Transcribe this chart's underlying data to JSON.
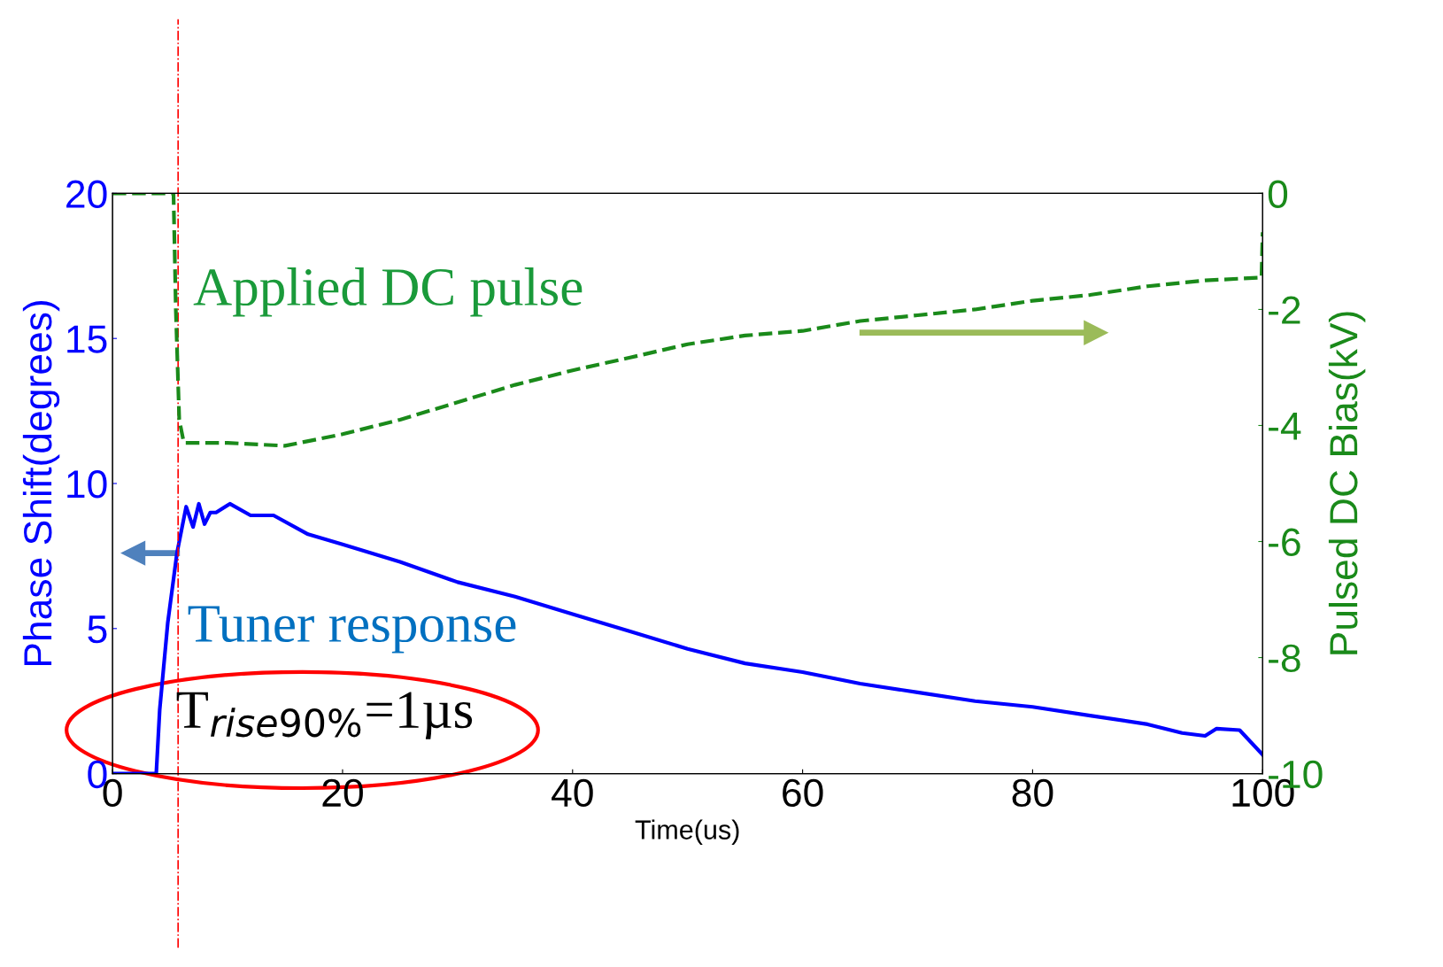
{
  "chart_data": {
    "type": "line",
    "xlabel": "Time(us)",
    "ylabel": "Phase Shift(degrees)",
    "y2label": "Pulsed DC Bias(kV)",
    "xlim": [
      0,
      100
    ],
    "xticks": [
      0,
      20,
      40,
      60,
      80,
      100
    ],
    "ylim": [
      0,
      20
    ],
    "yticks": [
      0,
      5,
      10,
      15,
      20
    ],
    "y2lim": [
      -10,
      0
    ],
    "y2ticks": [
      -10,
      -8,
      -6,
      -4,
      -2,
      0
    ],
    "grid": false,
    "legend": false,
    "series": [
      {
        "name": "Tuner response",
        "color": "#0000ff",
        "line_style": "solid",
        "x": [
          0,
          3.8,
          4.1,
          4.8,
          5.6,
          6.4,
          7.0,
          7.5,
          8.0,
          8.5,
          9.0,
          10.2,
          12,
          14,
          17,
          20,
          25,
          30,
          35,
          40,
          45,
          50,
          55,
          60,
          65,
          70,
          75,
          80,
          85,
          90,
          93,
          95,
          96,
          98,
          100
        ],
        "values": [
          0,
          0,
          2.2,
          5.2,
          7.6,
          9.2,
          8.5,
          9.3,
          8.6,
          9.0,
          9.0,
          9.3,
          8.9,
          8.9,
          8.25,
          7.9,
          7.3,
          6.6,
          6.1,
          5.5,
          4.9,
          4.3,
          3.8,
          3.5,
          3.1,
          2.8,
          2.5,
          2.3,
          2.0,
          1.7,
          1.4,
          1.3,
          1.55,
          1.5,
          0.65
        ]
      },
      {
        "name": "Applied DC pulse",
        "color": "#1a8a1a",
        "axis": "y2",
        "line_style": "dashed",
        "x": [
          0,
          5.3,
          5.5,
          5.8,
          6.2,
          10,
          15,
          20,
          25,
          30,
          35,
          40,
          45,
          50,
          55,
          60,
          65,
          70,
          75,
          80,
          85,
          90,
          95,
          99.9,
          100
        ],
        "values": [
          0,
          0,
          -2.0,
          -3.9,
          -4.3,
          -4.3,
          -4.35,
          -4.15,
          -3.9,
          -3.6,
          -3.3,
          -3.05,
          -2.83,
          -2.6,
          -2.45,
          -2.37,
          -2.2,
          -2.1,
          -2.0,
          -1.85,
          -1.75,
          -1.6,
          -1.5,
          -1.45,
          -0.67
        ]
      }
    ],
    "ref_lines": [
      {
        "axis": "x",
        "value": 5.7,
        "color": "#ff0000",
        "line_style": "dashdot"
      }
    ],
    "annotations": [
      "T$_{rise90%}$=1µs"
    ]
  }
}
